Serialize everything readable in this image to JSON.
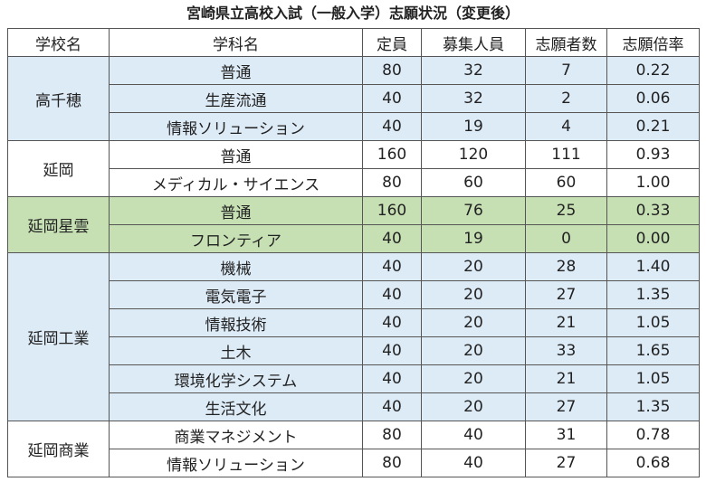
{
  "title": "宮崎県立高校入試（一般入学）志願状況（変更後）",
  "table": {
    "header": [
      "学校名",
      "学科名",
      "定員",
      "募集人員",
      "志願者数",
      "志願倍率"
    ],
    "groups": [
      {
        "school": "高千穂",
        "rows": [
          [
            "普通",
            "80",
            "32",
            "7",
            "0.22"
          ],
          [
            "生産流通",
            "40",
            "32",
            "2",
            "0.06"
          ],
          [
            "情報ソリューション",
            "40",
            "19",
            "4",
            "0.21"
          ]
        ]
      },
      {
        "school": "延岡",
        "rows": [
          [
            "普通",
            "160",
            "120",
            "111",
            "0.93"
          ],
          [
            "メディカル・サイエンス",
            "80",
            "60",
            "60",
            "1.00"
          ]
        ]
      },
      {
        "school": "延岡星雲",
        "rows": [
          [
            "普通",
            "160",
            "76",
            "25",
            "0.33"
          ],
          [
            "フロンティア",
            "40",
            "19",
            "0",
            "0.00"
          ]
        ]
      },
      {
        "school": "延岡工業",
        "rows": [
          [
            "機械",
            "40",
            "20",
            "28",
            "1.40"
          ],
          [
            "電気電子",
            "40",
            "20",
            "27",
            "1.35"
          ],
          [
            "情報技術",
            "40",
            "20",
            "21",
            "1.05"
          ],
          [
            "土木",
            "40",
            "20",
            "33",
            "1.65"
          ],
          [
            "環境化学システム",
            "40",
            "20",
            "21",
            "1.05"
          ],
          [
            "生活文化",
            "40",
            "20",
            "27",
            "1.35"
          ]
        ]
      },
      {
        "school": "延岡商業",
        "rows": [
          [
            "商業マネジメント",
            "80",
            "40",
            "31",
            "0.78"
          ],
          [
            "情報ソリューション",
            "80",
            "40",
            "27",
            "0.68"
          ]
        ]
      }
    ]
  }
}
